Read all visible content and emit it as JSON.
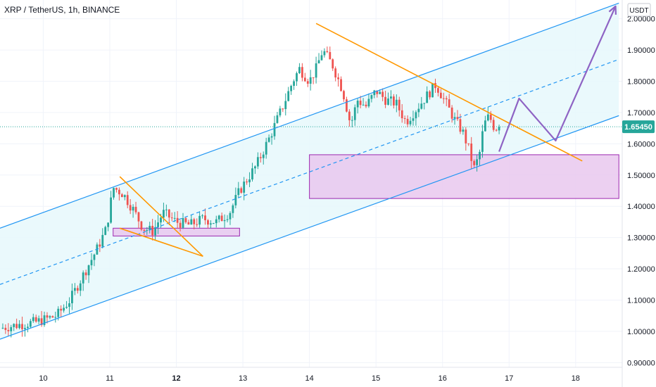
{
  "header": {
    "symbol_title": "XRP / TetherUS, 1h, BINANCE",
    "currency_button": "USDT"
  },
  "colors": {
    "up": "#26a69a",
    "down": "#ef5350",
    "channel": "#2196f3",
    "channel_fill": "#e6f8fb",
    "wedge": "#ff9800",
    "zone_fill": "#e9c8ef",
    "zone_stroke": "#9c27b0",
    "projection": "#8e63c4",
    "current_price": "#26a69a"
  },
  "chart_data": {
    "type": "candlestick",
    "current_price": 1.6545,
    "current_price_label": "1.65450",
    "y_axis": {
      "range": [
        0.885,
        2.06
      ],
      "ticks": [
        {
          "value": 2.0,
          "label": "2.00000"
        },
        {
          "value": 1.9,
          "label": "1.90000"
        },
        {
          "value": 1.8,
          "label": "1.80000"
        },
        {
          "value": 1.7,
          "label": "1.70000"
        },
        {
          "value": 1.6,
          "label": "1.60000"
        },
        {
          "value": 1.5,
          "label": "1.50000"
        },
        {
          "value": 1.4,
          "label": "1.40000"
        },
        {
          "value": 1.3,
          "label": "1.30000"
        },
        {
          "value": 1.2,
          "label": "1.20000"
        },
        {
          "value": 1.1,
          "label": "1.10000"
        },
        {
          "value": 1.0,
          "label": "1.00000"
        },
        {
          "value": 0.9,
          "label": "0.90000"
        }
      ]
    },
    "x_axis": {
      "unit": "day",
      "range": [
        9.35,
        18.7
      ],
      "ticks": [
        {
          "value": 10,
          "label": "10"
        },
        {
          "value": 11,
          "label": "11"
        },
        {
          "value": 12,
          "label": "12"
        },
        {
          "value": 13,
          "label": "13"
        },
        {
          "value": 14,
          "label": "14"
        },
        {
          "value": 15,
          "label": "15"
        },
        {
          "value": 16,
          "label": "16"
        },
        {
          "value": 17,
          "label": "17"
        },
        {
          "value": 18,
          "label": "18"
        }
      ]
    },
    "price_path": [
      [
        9.35,
        1.01
      ],
      [
        9.6,
        1.02
      ],
      [
        9.9,
        1.03
      ],
      [
        10.2,
        1.05
      ],
      [
        10.4,
        1.1
      ],
      [
        10.6,
        1.18
      ],
      [
        10.8,
        1.26
      ],
      [
        10.95,
        1.33
      ],
      [
        11.05,
        1.46
      ],
      [
        11.2,
        1.44
      ],
      [
        11.35,
        1.39
      ],
      [
        11.5,
        1.33
      ],
      [
        11.65,
        1.32
      ],
      [
        11.8,
        1.38
      ],
      [
        12.0,
        1.35
      ],
      [
        12.2,
        1.34
      ],
      [
        12.4,
        1.36
      ],
      [
        12.6,
        1.35
      ],
      [
        12.8,
        1.38
      ],
      [
        12.95,
        1.45
      ],
      [
        13.2,
        1.53
      ],
      [
        13.4,
        1.62
      ],
      [
        13.6,
        1.72
      ],
      [
        13.75,
        1.8
      ],
      [
        13.85,
        1.84
      ],
      [
        14.0,
        1.8
      ],
      [
        14.1,
        1.84
      ],
      [
        14.2,
        1.9
      ],
      [
        14.35,
        1.85
      ],
      [
        14.5,
        1.77
      ],
      [
        14.62,
        1.66
      ],
      [
        14.72,
        1.74
      ],
      [
        14.85,
        1.72
      ],
      [
        15.0,
        1.77
      ],
      [
        15.15,
        1.74
      ],
      [
        15.3,
        1.73
      ],
      [
        15.45,
        1.67
      ],
      [
        15.6,
        1.71
      ],
      [
        15.75,
        1.75
      ],
      [
        15.9,
        1.79
      ],
      [
        16.05,
        1.73
      ],
      [
        16.2,
        1.67
      ],
      [
        16.3,
        1.64
      ],
      [
        16.4,
        1.58
      ],
      [
        16.47,
        1.52
      ],
      [
        16.55,
        1.56
      ],
      [
        16.62,
        1.66
      ],
      [
        16.7,
        1.69
      ],
      [
        16.78,
        1.65
      ],
      [
        16.85,
        1.6545
      ]
    ],
    "drawings": {
      "channel_upper": [
        [
          9.35,
          1.33
        ],
        [
          18.65,
          2.05
        ]
      ],
      "channel_mid": [
        [
          9.35,
          1.15
        ],
        [
          18.65,
          1.87
        ]
      ],
      "channel_lower": [
        [
          9.35,
          0.975
        ],
        [
          18.65,
          1.69
        ]
      ],
      "wedge_top": [
        [
          11.15,
          1.495
        ],
        [
          12.4,
          1.24
        ]
      ],
      "wedge_bottom": [
        [
          11.15,
          1.33
        ],
        [
          12.4,
          1.24
        ]
      ],
      "resistance_line": [
        [
          14.1,
          1.985
        ],
        [
          18.1,
          1.545
        ]
      ],
      "support_zone_small": {
        "x": [
          11.05,
          12.95
        ],
        "y": [
          1.305,
          1.33
        ]
      },
      "support_zone_large": {
        "x": [
          14.0,
          18.65
        ],
        "y": [
          1.425,
          1.565
        ]
      },
      "projection": [
        [
          16.85,
          1.575
        ],
        [
          17.15,
          1.745
        ],
        [
          17.7,
          1.61
        ],
        [
          18.6,
          2.04
        ]
      ]
    }
  }
}
